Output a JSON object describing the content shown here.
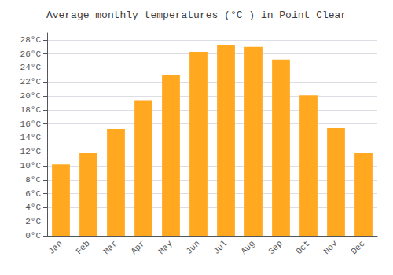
{
  "chart_data": {
    "type": "bar",
    "title": "Average monthly temperatures (°C ) in Point Clear",
    "categories": [
      "Jan",
      "Feb",
      "Mar",
      "Apr",
      "May",
      "Jun",
      "Jul",
      "Aug",
      "Sep",
      "Oct",
      "Nov",
      "Dec"
    ],
    "values": [
      10.2,
      11.8,
      15.3,
      19.4,
      23.0,
      26.3,
      27.3,
      27.0,
      25.2,
      20.1,
      15.4,
      11.8
    ],
    "color": "#FFA820",
    "ylim": [
      0,
      29
    ],
    "yticks": [
      {
        "value": 0,
        "label": "0°C"
      },
      {
        "value": 2,
        "label": "2°C"
      },
      {
        "value": 4,
        "label": "4°C"
      },
      {
        "value": 6,
        "label": "6°C"
      },
      {
        "value": 8,
        "label": "8°C"
      },
      {
        "value": 10,
        "label": "10°C"
      },
      {
        "value": 12,
        "label": "12°C"
      },
      {
        "value": 14,
        "label": "14°C"
      },
      {
        "value": 16,
        "label": "16°C"
      },
      {
        "value": 18,
        "label": "18°C"
      },
      {
        "value": 20,
        "label": "20°C"
      },
      {
        "value": 22,
        "label": "22°C"
      },
      {
        "value": 24,
        "label": "24°C"
      },
      {
        "value": 26,
        "label": "26°C"
      },
      {
        "value": 28,
        "label": "28°C"
      }
    ],
    "grid": true
  }
}
